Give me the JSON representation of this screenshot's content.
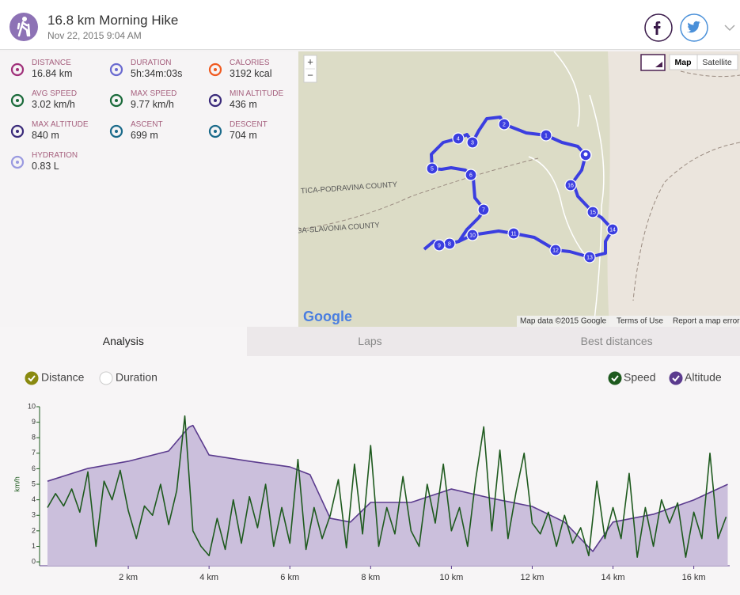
{
  "header": {
    "title": "16.8 km Morning Hike",
    "date": "Nov 22, 2015 9:04 AM"
  },
  "stats": [
    {
      "label": "DISTANCE",
      "value": "16.84 km"
    },
    {
      "label": "DURATION",
      "value": "5h:34m:03s"
    },
    {
      "label": "CALORIES",
      "value": "3192 kcal"
    },
    {
      "label": "AVG SPEED",
      "value": "3.02 km/h"
    },
    {
      "label": "MAX SPEED",
      "value": "9.77 km/h"
    },
    {
      "label": "MIN ALTITUDE",
      "value": "436 m"
    },
    {
      "label": "MAX ALTITUDE",
      "value": "840 m"
    },
    {
      "label": "ASCENT",
      "value": "699 m"
    },
    {
      "label": "DESCENT",
      "value": "704 m"
    },
    {
      "label": "HYDRATION",
      "value": "0.83 L"
    }
  ],
  "map": {
    "zoom": [
      "+",
      "−"
    ],
    "types": [
      "Map",
      "Satellite"
    ],
    "logo": "Google",
    "attribution": [
      "Map data ©2015 Google",
      "Terms of Use",
      "Report a map error"
    ],
    "regions": [
      "TICA-PODRAVINA COUNTY",
      "ŽEGA-SLAVONIA COUNTY"
    ],
    "markers": [
      1,
      2,
      3,
      4,
      5,
      6,
      7,
      8,
      9,
      10,
      11,
      12,
      13,
      14,
      15,
      16
    ]
  },
  "tabs": [
    "Analysis",
    "Laps",
    "Best distances"
  ],
  "chart_data": {
    "type": "line",
    "x_modes": [
      {
        "name": "Distance",
        "checked": true
      },
      {
        "name": "Duration",
        "checked": false
      }
    ],
    "ylabel": "km/h",
    "xlim": [
      0,
      16.85
    ],
    "ylim": [
      -0.25,
      10
    ],
    "y2lim": [
      390,
      900
    ],
    "xticks": [
      {
        "value": 2,
        "label": "2 km"
      },
      {
        "value": 4,
        "label": "4 km"
      },
      {
        "value": 6,
        "label": "6 km"
      },
      {
        "value": 8,
        "label": "8 km"
      },
      {
        "value": 10,
        "label": "10 km"
      },
      {
        "value": 12,
        "label": "12 km"
      },
      {
        "value": 14,
        "label": "14 km"
      },
      {
        "value": 16,
        "label": "16 km"
      }
    ],
    "yticks": [
      0,
      1,
      2,
      3,
      4,
      5,
      6,
      7,
      8,
      9,
      10
    ],
    "series": [
      {
        "name": "Speed",
        "color": "#1e5a1e",
        "checked": true,
        "x": [
          0,
          0.2,
          0.4,
          0.6,
          0.8,
          1,
          1.2,
          1.4,
          1.6,
          1.8,
          2,
          2.2,
          2.4,
          2.6,
          2.8,
          3,
          3.2,
          3.4,
          3.6,
          3.8,
          4,
          4.2,
          4.4,
          4.6,
          4.8,
          5,
          5.2,
          5.4,
          5.6,
          5.8,
          6,
          6.2,
          6.4,
          6.6,
          6.8,
          7,
          7.2,
          7.4,
          7.6,
          7.8,
          8,
          8.2,
          8.4,
          8.6,
          8.8,
          9,
          9.2,
          9.4,
          9.6,
          9.8,
          10,
          10.2,
          10.4,
          10.6,
          10.8,
          11,
          11.2,
          11.4,
          11.6,
          11.8,
          12,
          12.2,
          12.4,
          12.6,
          12.8,
          13,
          13.2,
          13.4,
          13.6,
          13.8,
          14,
          14.2,
          14.4,
          14.6,
          14.8,
          15,
          15.2,
          15.4,
          15.6,
          15.8,
          16,
          16.2,
          16.4,
          16.6,
          16.8
        ],
        "values": [
          3.5,
          4.4,
          3.6,
          4.7,
          3.2,
          5.8,
          1,
          5.2,
          4,
          5.9,
          3.3,
          1.5,
          3.6,
          3,
          5,
          2.4,
          4.6,
          9.4,
          2,
          1,
          0.4,
          2.8,
          0.8,
          4,
          1.2,
          4.2,
          2.2,
          5,
          1,
          3.5,
          1.2,
          6.6,
          0.8,
          3.5,
          1.5,
          3,
          5.3,
          0.9,
          6.3,
          1.8,
          7.5,
          1,
          3.5,
          1.8,
          5.5,
          2,
          1,
          5,
          2.5,
          6.3,
          2,
          3.5,
          1,
          5.3,
          8.7,
          2,
          7.2,
          1.5,
          4.5,
          7,
          2.5,
          1.8,
          3.2,
          1,
          3,
          1.2,
          2.2,
          0.4,
          5.2,
          1.5,
          3.5,
          1.5,
          5.7,
          0.3,
          3.5,
          1,
          4,
          2.5,
          3.8,
          0.3,
          3.2,
          1.5,
          7,
          1.5,
          2.9
        ]
      },
      {
        "name": "Altitude",
        "color": "#5b3b8e",
        "fill": "#cbbfdc",
        "axis": "y2",
        "checked": true,
        "x": [
          0,
          1,
          2,
          3,
          3.5,
          3.6,
          4,
          5,
          6,
          6.5,
          7,
          7.5,
          8,
          9,
          10,
          11,
          12,
          12.8,
          13.5,
          14,
          15,
          16,
          16.84
        ],
        "values": [
          661,
          702,
          725,
          758,
          834,
          840,
          745,
          725,
          707,
          682,
          542,
          530,
          593,
          593,
          636,
          606,
          580,
          530,
          436,
          530,
          555,
          601,
          651
        ]
      }
    ]
  }
}
